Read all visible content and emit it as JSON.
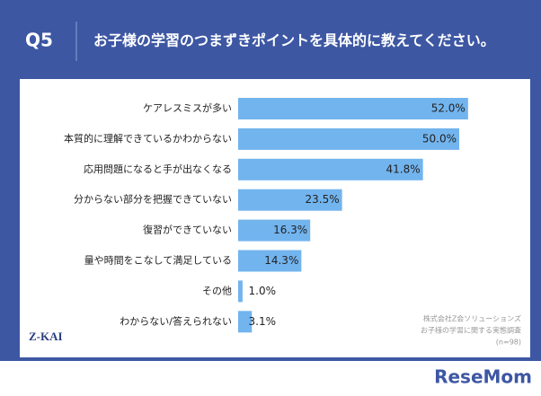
{
  "header": {
    "label": "Q5",
    "question": "お子様の学習のつまずきポイントを具体的に教えてください。"
  },
  "chart_data": {
    "type": "bar",
    "orientation": "horizontal",
    "categories": [
      "ケアレスミスが多い",
      "本質的に理解できているかわからない",
      "応用問題になると手が出なくなる",
      "分からない部分を把握できていない",
      "復習ができていない",
      "量や時間をこなして満足している",
      "その他",
      "わからない/答えられない"
    ],
    "values": [
      52.0,
      50.0,
      41.8,
      23.5,
      16.3,
      14.3,
      1.0,
      3.1
    ],
    "value_labels": [
      "52.0%",
      "50.0%",
      "41.8%",
      "23.5%",
      "16.3%",
      "14.3%",
      "1.0%",
      "3.1%"
    ],
    "color": "#72b4ee"
  },
  "notes": [
    "株式会社Z会ソリューションズ",
    "お子様の学習に関する実態調査",
    "(n=98)"
  ],
  "logo": "Z-KAI",
  "watermark": "ReseMom"
}
